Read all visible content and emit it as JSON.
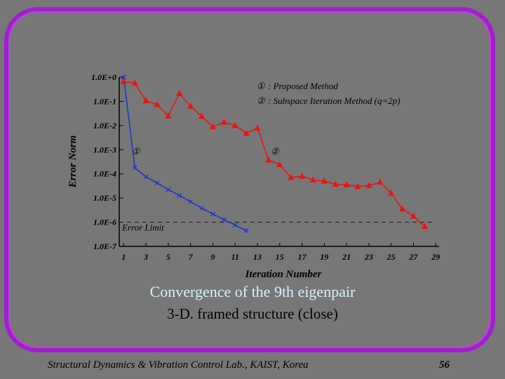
{
  "slide": {
    "title": "Convergence of the 9th eigenpair",
    "subtitle": "3-D. framed structure (close)",
    "footer": "Structural Dynamics & Vibration Control Lab., KAIST, Korea",
    "page_number": "56"
  },
  "colors": {
    "background": "#777777",
    "frame": "#a020d0",
    "series_proposed": "#2233cc",
    "series_subspace": "#ee1111",
    "title": "#d8f0ff"
  },
  "chart_data": {
    "type": "line",
    "xlabel": "Iteration Number",
    "ylabel": "Error Norm",
    "y_scale": "log",
    "xlim": [
      0.6,
      29.3
    ],
    "ylim_exponent": [
      -7,
      0
    ],
    "x_ticks": [
      "1",
      "3",
      "5",
      "7",
      "9",
      "11",
      "13",
      "15",
      "17",
      "19",
      "21",
      "23",
      "25",
      "27",
      "29"
    ],
    "y_ticks": [
      "1.0E+0",
      "1.0E-1",
      "1.0E-2",
      "1.0E-3",
      "1.0E-4",
      "1.0E-5",
      "1.0E-6",
      "1.0E-7"
    ],
    "error_limit": {
      "label": "Error Limit",
      "value_exponent": -6
    },
    "legend": [
      {
        "marker": "①",
        "text": ": Proposed Method"
      },
      {
        "marker": "②",
        "text": ": Subspace Iteration Method (q=2p)"
      }
    ],
    "series": [
      {
        "name": ": Proposed Method",
        "marker_label": "①",
        "marker": "x",
        "x": [
          1,
          2,
          3,
          4,
          5,
          6,
          7,
          8,
          9,
          10,
          11,
          12
        ],
        "log10_y": [
          0.0,
          -3.75,
          -4.12,
          -4.38,
          -4.65,
          -4.9,
          -5.15,
          -5.42,
          -5.66,
          -5.9,
          -6.12,
          -6.35
        ]
      },
      {
        "name": ": Subspace Iteration Method (q=2p)",
        "marker_label": "②",
        "marker": "triangle",
        "x": [
          1,
          2,
          3,
          4,
          5,
          6,
          7,
          8,
          9,
          10,
          11,
          12,
          13,
          14,
          15,
          16,
          17,
          18,
          19,
          20,
          21,
          22,
          23,
          24,
          25,
          26,
          27,
          28
        ],
        "log10_y": [
          -0.18,
          -0.25,
          -0.98,
          -1.13,
          -1.6,
          -0.68,
          -1.2,
          -1.62,
          -2.05,
          -1.86,
          -2.0,
          -2.32,
          -2.1,
          -3.43,
          -3.62,
          -4.15,
          -4.1,
          -4.25,
          -4.3,
          -4.43,
          -4.45,
          -4.52,
          -4.48,
          -4.35,
          -4.8,
          -5.45,
          -5.75,
          -6.18
        ]
      }
    ]
  }
}
